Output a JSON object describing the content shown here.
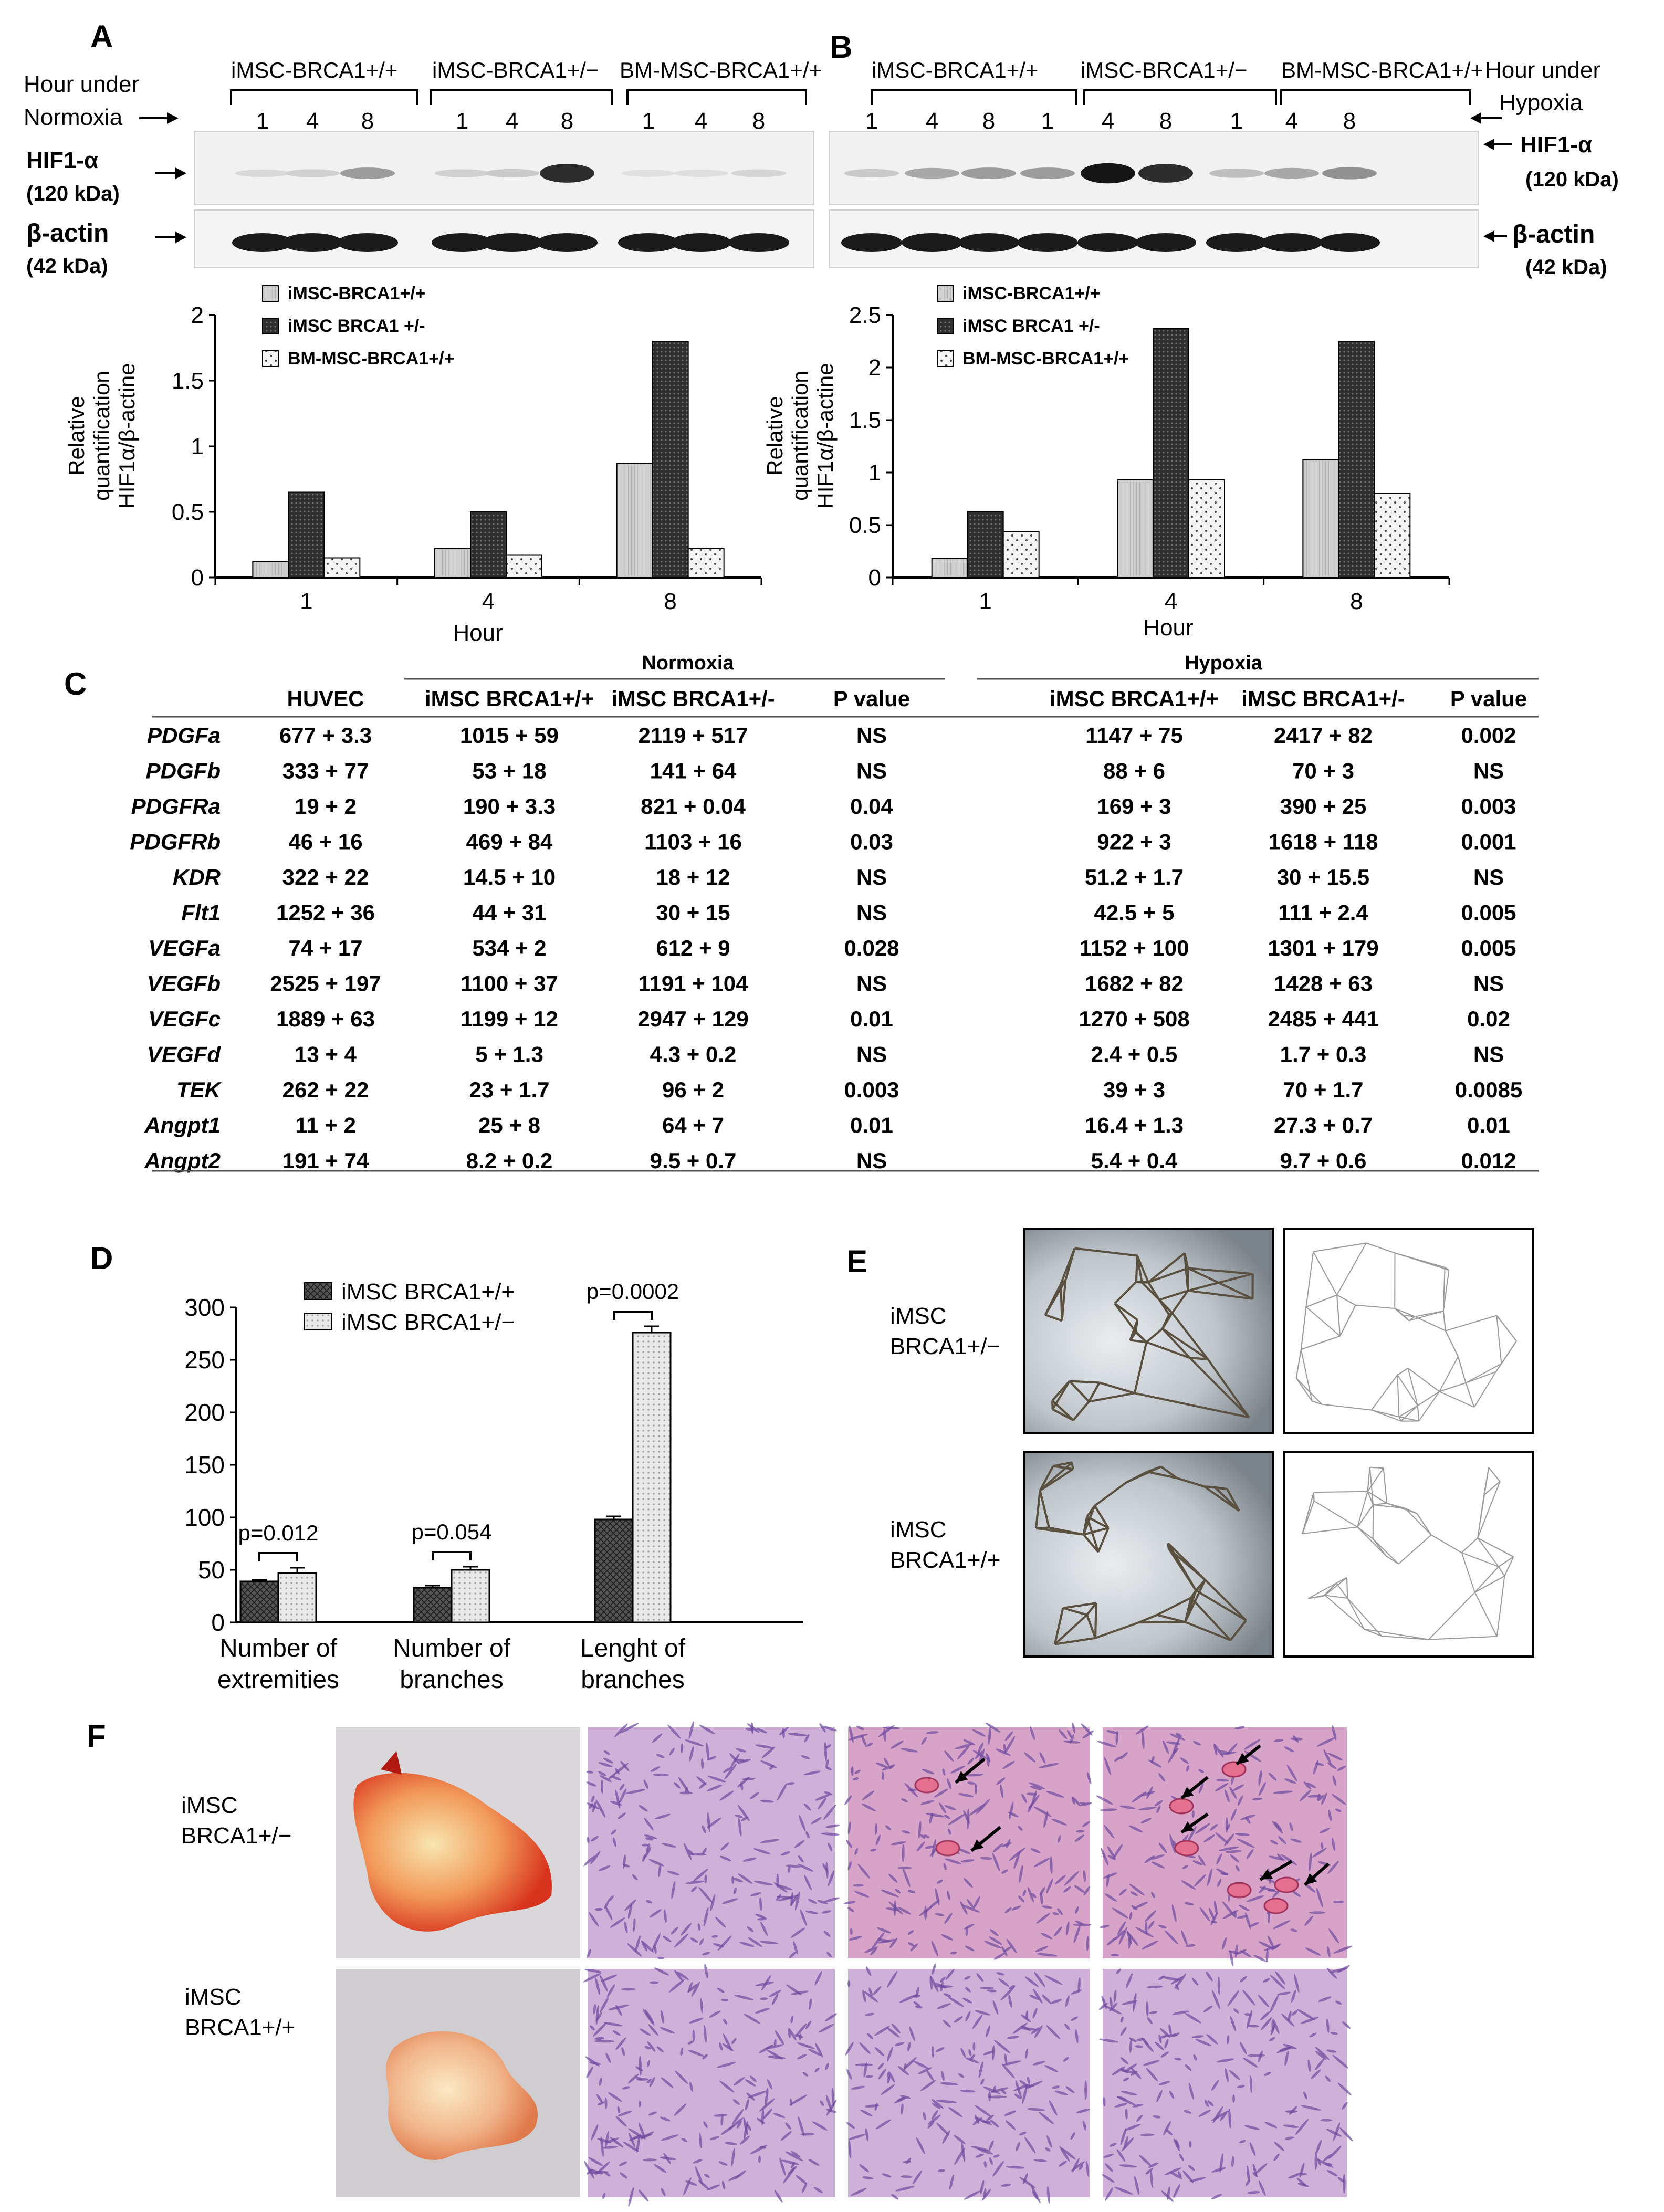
{
  "panels": {
    "A": "A",
    "B": "B",
    "C": "C",
    "D": "D",
    "E": "E",
    "F": "F"
  },
  "blot_a": {
    "hour_label_1": "Hour under",
    "hour_label_2": "Normoxia",
    "groups": [
      "iMSC-BRCA1+/+",
      "iMSC-BRCA1+/−",
      "BM-MSC-BRCA1+/+"
    ],
    "lanes": [
      "1",
      "4",
      "8",
      "1",
      "4",
      "8",
      "1",
      "4",
      "8"
    ],
    "hif_label_1": "HIF1-α",
    "hif_label_2": "(120 kDa)",
    "actin_label_1": "β-actin",
    "actin_label_2": "(42 kDa)",
    "hif_band_intensity": [
      0.08,
      0.12,
      0.35,
      0.12,
      0.15,
      0.85,
      0.05,
      0.06,
      0.1
    ]
  },
  "blot_b": {
    "hour_label_1": "Hour under",
    "hour_label_2": "Hypoxia",
    "groups": [
      "iMSC-BRCA1+/+",
      "iMSC-BRCA1+/−",
      "BM-MSC-BRCA1+/+"
    ],
    "lanes": [
      "1",
      "4",
      "8",
      "1",
      "4",
      "8",
      "1",
      "4",
      "8"
    ],
    "hif_label_1": "HIF1-α",
    "hif_label_2": "(120 kDa)",
    "actin_label_1": "β-actin",
    "actin_label_2": "(42 kDa)",
    "hif_band_intensity": [
      0.15,
      0.3,
      0.35,
      0.35,
      0.95,
      0.85,
      0.2,
      0.3,
      0.4
    ]
  },
  "chart_data": [
    {
      "id": "A",
      "type": "bar",
      "categories": [
        "1",
        "4",
        "8"
      ],
      "series": [
        {
          "name": "iMSC-BRCA1+/+",
          "values": [
            0.12,
            0.22,
            0.87
          ]
        },
        {
          "name": "iMSC BRCA1 +/-",
          "values": [
            0.65,
            0.5,
            1.8
          ]
        },
        {
          "name": "BM-MSC-BRCA1+/+",
          "values": [
            0.15,
            0.17,
            0.22
          ]
        }
      ],
      "xlabel": "Hour",
      "ylabel_1": "Relative",
      "ylabel_2": "quantification",
      "ylabel_3": "HIF1α/β-actine",
      "ylim": [
        0,
        2
      ],
      "yticks": [
        "0",
        "0.5",
        "1",
        "1.5",
        "2"
      ],
      "legend": "top-left"
    },
    {
      "id": "B",
      "type": "bar",
      "categories": [
        "1",
        "4",
        "8"
      ],
      "series": [
        {
          "name": "iMSC-BRCA1+/+",
          "values": [
            0.18,
            0.93,
            1.12
          ]
        },
        {
          "name": "iMSC BRCA1 +/-",
          "values": [
            0.63,
            2.37,
            2.25
          ]
        },
        {
          "name": "BM-MSC-BRCA1+/+",
          "values": [
            0.44,
            0.93,
            0.8
          ]
        }
      ],
      "xlabel": "Hour",
      "ylabel_1": "Relative",
      "ylabel_2": "quantification",
      "ylabel_3": "HIF1α/β-actine",
      "ylim": [
        0,
        2.5
      ],
      "yticks": [
        "0",
        "0.5",
        "1",
        "1.5",
        "2",
        "2.5"
      ],
      "legend": "top-left"
    },
    {
      "id": "D",
      "type": "bar",
      "categories": [
        "Number of extremities",
        "Number of branches",
        "Lenght of branches"
      ],
      "category_lines": [
        [
          "Number of",
          "extremities"
        ],
        [
          "Number of",
          "branches"
        ],
        [
          "Lenght of",
          "branches"
        ]
      ],
      "series": [
        {
          "name": "iMSC BRCA1+/+",
          "values": [
            39,
            33,
            98
          ],
          "errors": [
            1.5,
            2,
            3
          ]
        },
        {
          "name": "iMSC BRCA1+/−",
          "values": [
            47,
            50,
            276
          ],
          "errors": [
            5,
            3,
            6
          ]
        }
      ],
      "pvalues": [
        "p=0.012",
        "p=0.054",
        "p=0.0002"
      ],
      "ylim": [
        0,
        300
      ],
      "yticks": [
        "0",
        "50",
        "100",
        "150",
        "200",
        "250",
        "300"
      ],
      "legend": "top-left"
    }
  ],
  "table": {
    "group_normoxia": "Normoxia",
    "group_hypoxia": "Hypoxia",
    "columns": [
      "HUVEC",
      "iMSC BRCA1+/+",
      "iMSC BRCA1+/-",
      "P value",
      "iMSC BRCA1+/+",
      "iMSC BRCA1+/-",
      "P value"
    ],
    "rows": [
      {
        "gene": "PDGFa",
        "cells": [
          "677 + 3.3",
          "1015 + 59",
          "2119 + 517",
          "NS",
          "1147 + 75",
          "2417 + 82",
          "0.002"
        ]
      },
      {
        "gene": "PDGFb",
        "cells": [
          "333 + 77",
          "53 + 18",
          "141 + 64",
          "NS",
          "88 + 6",
          "70 + 3",
          "NS"
        ]
      },
      {
        "gene": "PDGFRa",
        "cells": [
          "19 + 2",
          "190 + 3.3",
          "821 + 0.04",
          "0.04",
          "169 + 3",
          "390 + 25",
          "0.003"
        ]
      },
      {
        "gene": "PDGFRb",
        "cells": [
          "46 + 16",
          "469 + 84",
          "1103 + 16",
          "0.03",
          "922 + 3",
          "1618 + 118",
          "0.001"
        ]
      },
      {
        "gene": "KDR",
        "cells": [
          "322 + 22",
          "14.5 + 10",
          "18 + 12",
          "NS",
          "51.2 + 1.7",
          "30 + 15.5",
          "NS"
        ]
      },
      {
        "gene": "Flt1",
        "cells": [
          "1252 + 36",
          "44 + 31",
          "30 + 15",
          "NS",
          "42.5 + 5",
          "111 + 2.4",
          "0.005"
        ]
      },
      {
        "gene": "VEGFa",
        "cells": [
          "74 + 17",
          "534 + 2",
          "612 + 9",
          "0.028",
          "1152 + 100",
          "1301 + 179",
          "0.005"
        ]
      },
      {
        "gene": "VEGFb",
        "cells": [
          "2525 + 197",
          "1100 + 37",
          "1191 + 104",
          "NS",
          "1682 + 82",
          "1428 + 63",
          "NS"
        ]
      },
      {
        "gene": "VEGFc",
        "cells": [
          "1889 + 63",
          "1199 + 12",
          "2947 + 129",
          "0.01",
          "1270 + 508",
          "2485 + 441",
          "0.02"
        ]
      },
      {
        "gene": "VEGFd",
        "cells": [
          "13 + 4",
          "5 + 1.3",
          "4.3 + 0.2",
          "NS",
          "2.4 + 0.5",
          "1.7 + 0.3",
          "NS"
        ]
      },
      {
        "gene": "TEK",
        "cells": [
          "262 + 22",
          "23 + 1.7",
          "96 + 2",
          "0.003",
          "39 + 3",
          "70 + 1.7",
          "0.0085"
        ]
      },
      {
        "gene": "Angpt1",
        "cells": [
          "11 + 2",
          "25 + 8",
          "64 + 7",
          "0.01",
          "16.4 + 1.3",
          "27.3 + 0.7",
          "0.01"
        ]
      },
      {
        "gene": "Angpt2",
        "cells": [
          "191 + 74",
          "8.2 + 0.2",
          "9.5 + 0.7",
          "NS",
          "5.4 + 0.4",
          "9.7 + 0.6",
          "0.012"
        ]
      }
    ]
  },
  "panel_e": {
    "label_top_1": "iMSC",
    "label_top_2": "BRCA1+/−",
    "label_bottom_1": "iMSC",
    "label_bottom_2": "BRCA1+/+"
  },
  "panel_f": {
    "label_top_1": "iMSC",
    "label_top_2": "BRCA1+/−",
    "label_bottom_1": "iMSC",
    "label_bottom_2": "BRCA1+/+"
  },
  "colors": {
    "series_light": "#cfcfcf",
    "series_dark": "#2e2e2e",
    "series_dotted": "#f4f4f4",
    "he_stain": "#c98fc0",
    "plug_red": "#e0442a"
  }
}
